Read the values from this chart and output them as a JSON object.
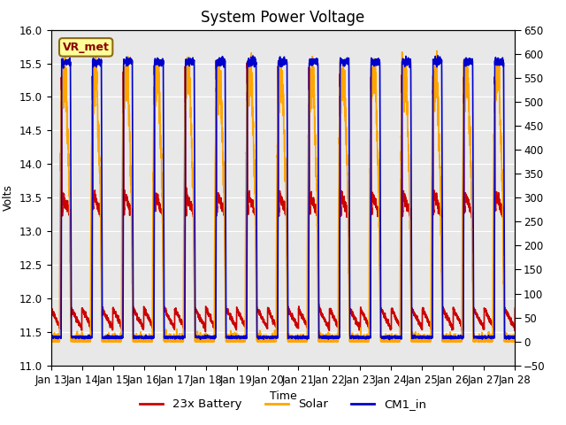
{
  "title": "System Power Voltage",
  "xlabel": "Time",
  "ylabel": "Volts",
  "ylim": [
    11.0,
    16.0
  ],
  "ylim2": [
    -50,
    650
  ],
  "yticks_left": [
    11.0,
    11.5,
    12.0,
    12.5,
    13.0,
    13.5,
    14.0,
    14.5,
    15.0,
    15.5,
    16.0
  ],
  "yticks_right": [
    -50,
    0,
    50,
    100,
    150,
    200,
    250,
    300,
    350,
    400,
    450,
    500,
    550,
    600,
    650
  ],
  "x_tick_labels": [
    "Jan 13",
    "Jan 14",
    "Jan 15",
    "Jan 16",
    "Jan 17",
    "Jan 18",
    "Jan 19",
    "Jan 20",
    "Jan 21",
    "Jan 22",
    "Jan 23",
    "Jan 24",
    "Jan 25",
    "Jan 26",
    "Jan 27",
    "Jan 28"
  ],
  "annotation_text": "VR_met",
  "annotation_color": "#8B0000",
  "annotation_bg": "#FFFF99",
  "annotation_edge": "#8B6914",
  "background_color": "#E8E8E8",
  "grid_color": "#FFFFFF",
  "series": [
    {
      "label": "23x Battery",
      "color": "#CC0000",
      "lw": 1.2
    },
    {
      "label": "Solar",
      "color": "#FFA500",
      "lw": 1.2
    },
    {
      "label": "CM1_in",
      "color": "#0000CC",
      "lw": 1.2
    }
  ],
  "title_fontsize": 12,
  "axis_fontsize": 9,
  "tick_fontsize": 8.5
}
